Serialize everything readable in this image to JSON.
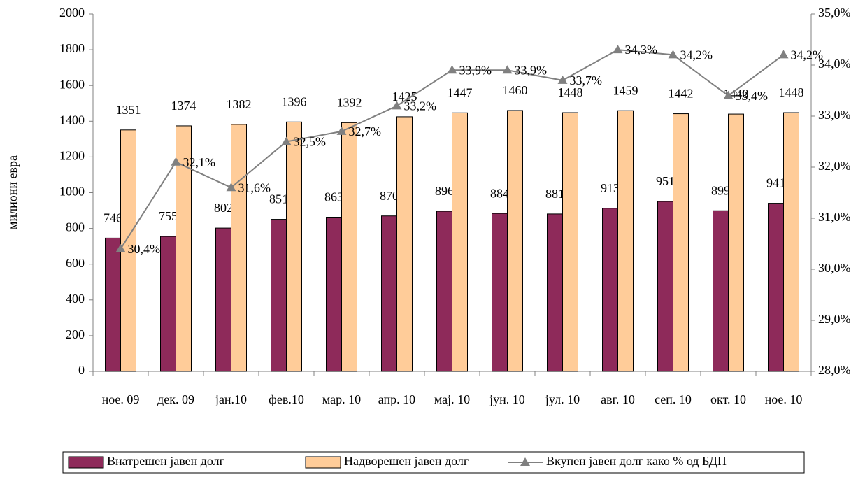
{
  "chart_data": {
    "type": "bar",
    "y_label": "милиони евра",
    "categories": [
      "ное. 09",
      "дек. 09",
      "јан.10",
      "фев.10",
      "мар. 10",
      "апр. 10",
      "мај. 10",
      "јун. 10",
      "јул. 10",
      "авг. 10",
      "сеп. 10",
      "окт. 10",
      "ное. 10"
    ],
    "series": [
      {
        "name": "Внатрешен јавен долг",
        "color": "#8e2a5a",
        "type": "bar",
        "values": [
          746,
          755,
          802,
          851,
          863,
          870,
          896,
          884,
          881,
          913,
          951,
          899,
          941
        ]
      },
      {
        "name": "Надворешен јавен долг",
        "color": "#ffcc99",
        "type": "bar",
        "values": [
          1351,
          1374,
          1382,
          1396,
          1392,
          1425,
          1447,
          1460,
          1448,
          1459,
          1442,
          1440,
          1448
        ]
      },
      {
        "name": "Вкупен јавен долг како % од БДП",
        "color": "#808080",
        "type": "line",
        "axis": "y2",
        "values": [
          30.4,
          32.1,
          31.6,
          32.5,
          32.7,
          33.2,
          33.9,
          33.9,
          33.7,
          34.3,
          34.2,
          33.4,
          34.2
        ],
        "value_labels": [
          "30,4%",
          "32,1%",
          "31,6%",
          "32,5%",
          "32,7%",
          "33,2%",
          "33,9%",
          "33,9%",
          "33,7%",
          "34,3%",
          "34,2%",
          "33,4%",
          "34,2%"
        ]
      }
    ],
    "ylim": [
      0,
      2000
    ],
    "yticks": [
      0,
      200,
      400,
      600,
      800,
      1000,
      1200,
      1400,
      1600,
      1800,
      2000
    ],
    "y2lim": [
      28,
      35
    ],
    "y2ticks": [
      {
        "value": 28,
        "label": "28,0%"
      },
      {
        "value": 29,
        "label": "29,0%"
      },
      {
        "value": 30,
        "label": "30,0%"
      },
      {
        "value": 31,
        "label": "31,0%"
      },
      {
        "value": 32,
        "label": "32,0%"
      },
      {
        "value": 33,
        "label": "33,0%"
      },
      {
        "value": 34,
        "label": "34,0%"
      },
      {
        "value": 35,
        "label": "35,0%"
      }
    ],
    "legend": "bottom"
  }
}
